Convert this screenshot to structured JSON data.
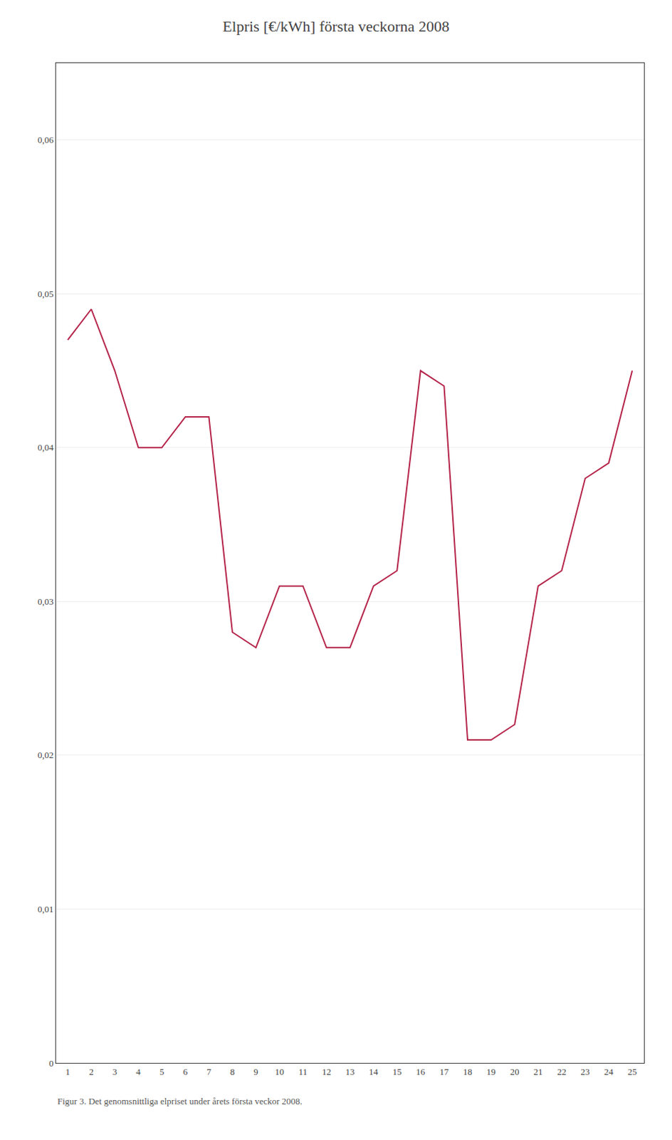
{
  "chart_data": {
    "type": "line",
    "title": "Elpris [€/kWh] första veckorna 2008",
    "x": [
      1,
      2,
      3,
      4,
      5,
      6,
      7,
      8,
      9,
      10,
      11,
      12,
      13,
      14,
      15,
      16,
      17,
      18,
      19,
      20,
      21,
      22,
      23,
      24,
      25
    ],
    "values": [
      0.047,
      0.049,
      0.045,
      0.04,
      0.04,
      0.042,
      0.042,
      0.028,
      0.027,
      0.031,
      0.031,
      0.027,
      0.027,
      0.031,
      0.032,
      0.045,
      0.044,
      0.021,
      0.021,
      0.022,
      0.031,
      0.032,
      0.038,
      0.039,
      0.045
    ],
    "color": "#b5254a",
    "xlim": [
      0.5,
      25.5
    ],
    "xticks": [
      1,
      2,
      3,
      4,
      5,
      6,
      7,
      8,
      9,
      10,
      11,
      12,
      13,
      14,
      15,
      16,
      17,
      18,
      19,
      20,
      21,
      22,
      23,
      24,
      25
    ],
    "ylim": [
      0,
      0.065
    ],
    "yticks": [
      0,
      {
        "value": 0.01,
        "label": "0,01"
      },
      {
        "value": 0.02,
        "label": "0,02"
      },
      {
        "value": 0.03,
        "label": "0,03"
      },
      {
        "value": 0.04,
        "label": "0,04"
      },
      {
        "value": 0.05,
        "label": "0,05"
      },
      {
        "value": 0.06,
        "label": "0,06"
      }
    ],
    "grid": true,
    "annotations": [
      "Figur 3. Det genomsnittliga elpriset under årets första veckor 2008."
    ]
  }
}
